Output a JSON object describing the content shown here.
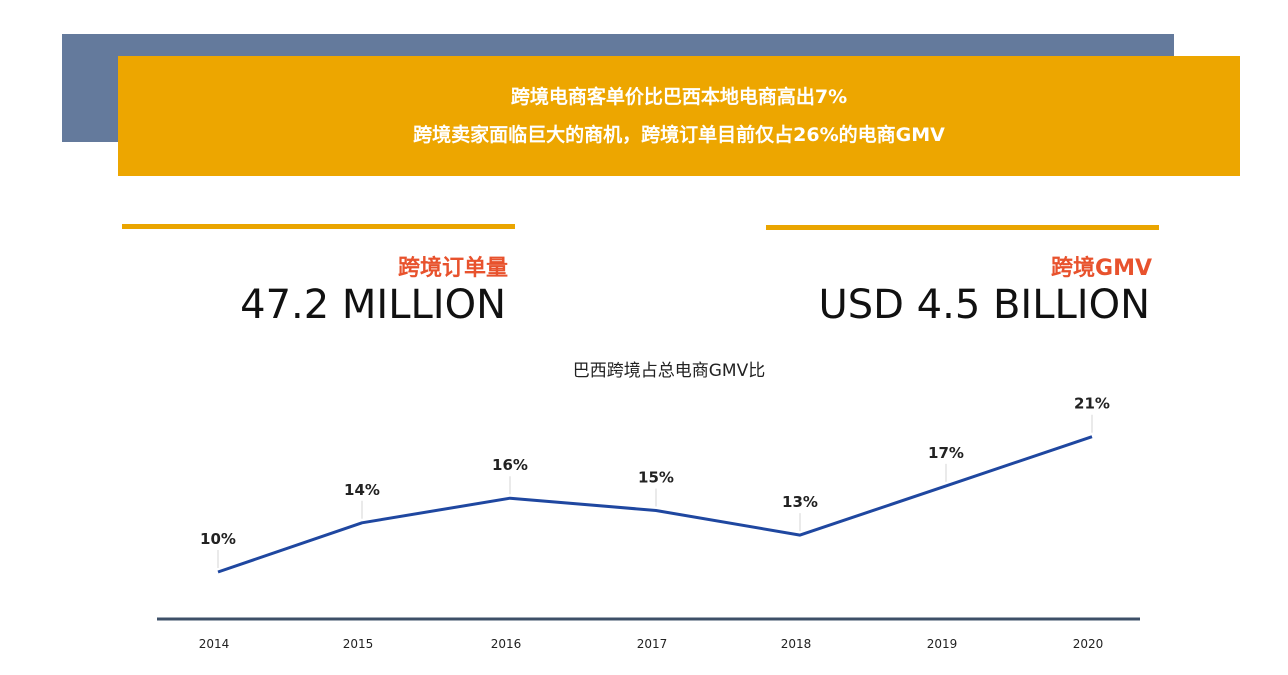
{
  "banner": {
    "line1": "跨境电商客单价比巴西本地电商高出7%",
    "line2": "跨境卖家面临巨大的商机，跨境订单目前仅占26%的电商GMV"
  },
  "stats": {
    "orders_label": "跨境订单量",
    "orders_value": "47.2 MILLION",
    "gmv_label": "跨境GMV",
    "gmv_value": "USD 4.5 BILLION"
  },
  "colors": {
    "banner": "#eda600",
    "block": "#647a9c",
    "accent_text": "#e8522d",
    "line": "#1f47a0",
    "axis": "#3e5068"
  },
  "chart_data": {
    "type": "line",
    "title": "巴西跨境占总电商GMV比",
    "categories": [
      "2014",
      "2015",
      "2016",
      "2017",
      "2018",
      "2019",
      "2020"
    ],
    "values": [
      10,
      14,
      16,
      15,
      13,
      17,
      21
    ],
    "data_labels": [
      "10%",
      "14%",
      "16%",
      "15%",
      "13%",
      "17%",
      "21%"
    ],
    "xlabel": "",
    "ylabel": "",
    "ylim": [
      0,
      30
    ],
    "grid": false,
    "legend": "none"
  }
}
